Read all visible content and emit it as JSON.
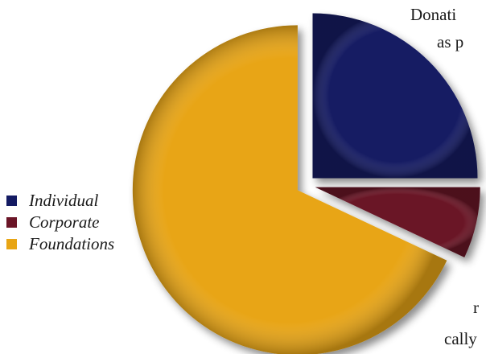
{
  "chart_data": {
    "type": "pie",
    "title": "",
    "exploded": true,
    "slices": [
      {
        "label": "Individual",
        "value": 25,
        "color": "#141b63"
      },
      {
        "label": "Corporate",
        "value": 7,
        "color": "#6b1527"
      },
      {
        "label": "Foundations",
        "value": 68,
        "color": "#e8a514"
      }
    ],
    "legend_position": "left"
  },
  "text_fragments": [
    "Donati",
    "as p",
    "r",
    "cally"
  ]
}
